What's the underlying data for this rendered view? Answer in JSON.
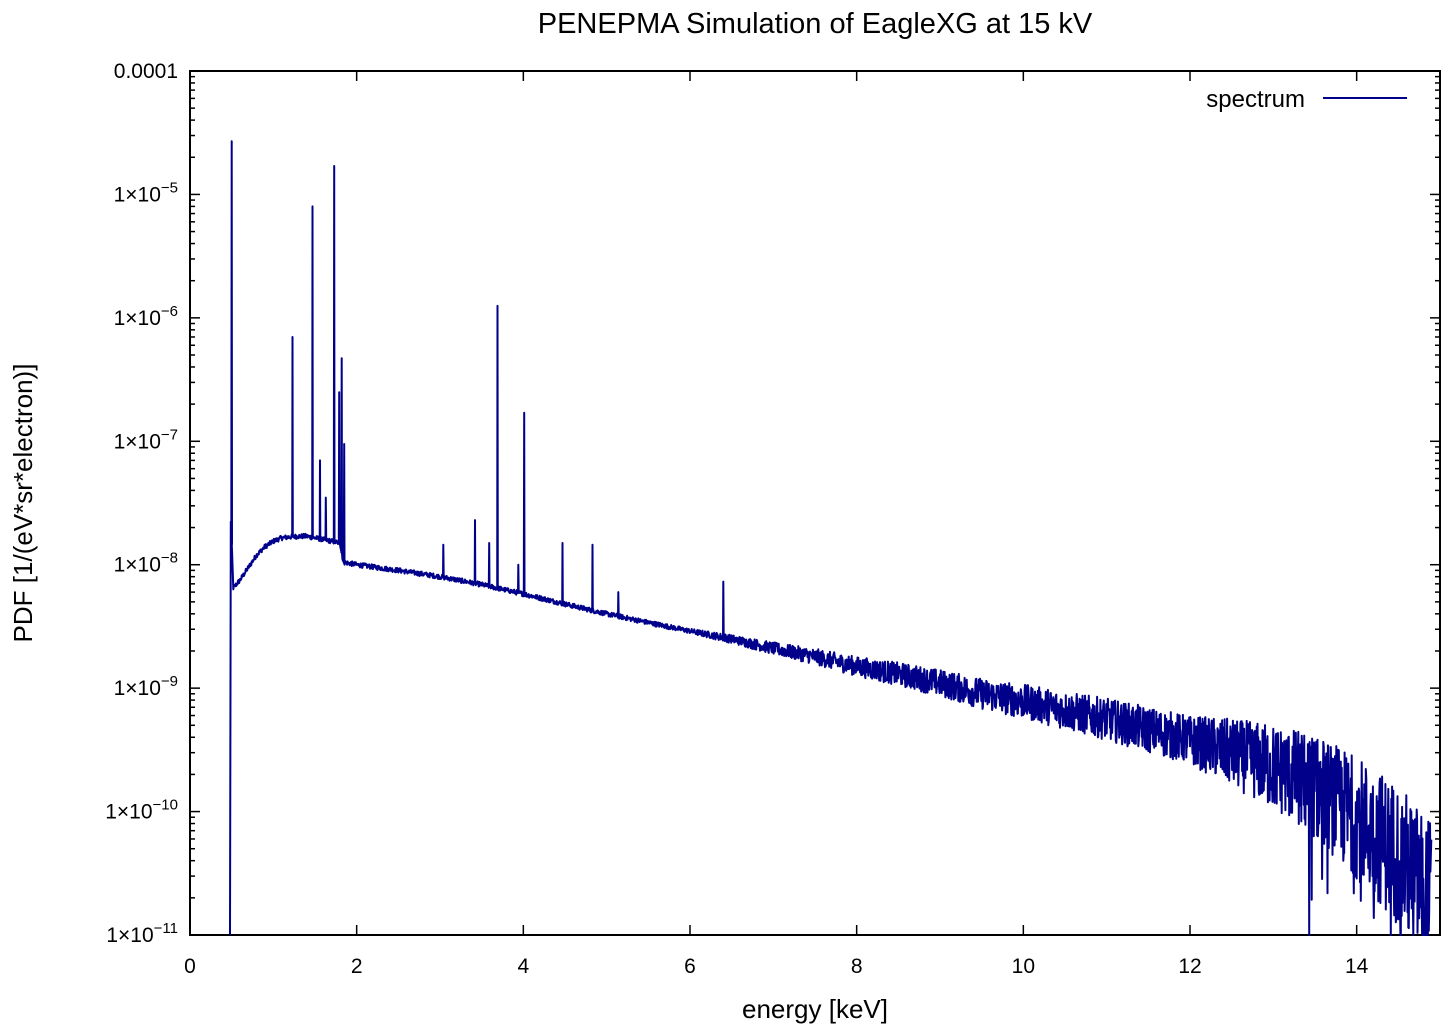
{
  "chart_data": {
    "type": "line",
    "title": "PENEPMA Simulation of EagleXG at 15 kV",
    "xlabel": "energy [keV]",
    "ylabel": "PDF [1/(eV*sr*electron)]",
    "xlim": [
      0,
      15
    ],
    "ylim": [
      1e-11,
      0.0001
    ],
    "yscale": "log",
    "grid": false,
    "legend": "top-right",
    "x_ticks": [
      {
        "value": 0,
        "label": "0"
      },
      {
        "value": 2,
        "label": "2"
      },
      {
        "value": 4,
        "label": "4"
      },
      {
        "value": 6,
        "label": "6"
      },
      {
        "value": 8,
        "label": "8"
      },
      {
        "value": 10,
        "label": "10"
      },
      {
        "value": 12,
        "label": "12"
      },
      {
        "value": 14,
        "label": "14"
      }
    ],
    "y_ticks": [
      {
        "value": 0.0001,
        "label": "0.0001",
        "mant": "",
        "exp": ""
      },
      {
        "value": 1e-05,
        "label": "",
        "mant": "1×10",
        "exp": "−5"
      },
      {
        "value": 1e-06,
        "label": "",
        "mant": "1×10",
        "exp": "−6"
      },
      {
        "value": 1e-07,
        "label": "",
        "mant": "1×10",
        "exp": "−7"
      },
      {
        "value": 1e-08,
        "label": "",
        "mant": "1×10",
        "exp": "−8"
      },
      {
        "value": 1e-09,
        "label": "",
        "mant": "1×10",
        "exp": "−9"
      },
      {
        "value": 1e-10,
        "label": "",
        "mant": "1×10",
        "exp": "−10"
      },
      {
        "value": 1e-11,
        "label": "",
        "mant": "1×10",
        "exp": "−11"
      }
    ],
    "series": [
      {
        "name": "spectrum",
        "color": "#00008b",
        "continuum": [
          [
            0.48,
            1e-11
          ],
          [
            0.49,
            2.2e-08
          ],
          [
            0.52,
            6.5e-09
          ],
          [
            0.6,
            7.5e-09
          ],
          [
            0.7,
            9.5e-09
          ],
          [
            0.8,
            1.2e-08
          ],
          [
            0.9,
            1.4e-08
          ],
          [
            1.0,
            1.55e-08
          ],
          [
            1.1,
            1.65e-08
          ],
          [
            1.2,
            1.68e-08
          ],
          [
            1.3,
            1.7e-08
          ],
          [
            1.4,
            1.7e-08
          ],
          [
            1.5,
            1.65e-08
          ],
          [
            1.6,
            1.6e-08
          ],
          [
            1.7,
            1.55e-08
          ],
          [
            1.8,
            1.5e-08
          ],
          [
            1.84,
            1.05e-08
          ],
          [
            2.0,
            1e-08
          ],
          [
            2.5,
            9e-09
          ],
          [
            3.0,
            8e-09
          ],
          [
            3.5,
            6.9e-09
          ],
          [
            4.0,
            5.8e-09
          ],
          [
            4.5,
            4.8e-09
          ],
          [
            5.0,
            4e-09
          ],
          [
            5.5,
            3.4e-09
          ],
          [
            6.0,
            2.9e-09
          ],
          [
            6.5,
            2.5e-09
          ],
          [
            7.0,
            2.1e-09
          ],
          [
            7.5,
            1.8e-09
          ],
          [
            8.0,
            1.5e-09
          ],
          [
            8.5,
            1.3e-09
          ],
          [
            9.0,
            1.1e-09
          ],
          [
            9.5,
            9e-10
          ],
          [
            10.0,
            7.8e-10
          ],
          [
            10.5,
            6.6e-10
          ],
          [
            11.0,
            5.6e-10
          ],
          [
            11.5,
            4.6e-10
          ],
          [
            12.0,
            3.8e-10
          ],
          [
            12.5,
            3e-10
          ],
          [
            13.0,
            2.3e-10
          ],
          [
            13.5,
            1.6e-10
          ],
          [
            14.0,
            9e-11
          ],
          [
            14.5,
            4.5e-11
          ],
          [
            14.9,
            2e-11
          ]
        ],
        "peaks": [
          {
            "x": 0.5,
            "y": 2.7e-05
          },
          {
            "x": 1.23,
            "y": 7e-07
          },
          {
            "x": 1.47,
            "y": 8e-06
          },
          {
            "x": 1.56,
            "y": 7e-08
          },
          {
            "x": 1.63,
            "y": 3.5e-08
          },
          {
            "x": 1.73,
            "y": 1.7e-05
          },
          {
            "x": 1.79,
            "y": 2.5e-07
          },
          {
            "x": 1.82,
            "y": 4.7e-07
          },
          {
            "x": 1.85,
            "y": 9.5e-08
          },
          {
            "x": 3.04,
            "y": 1.45e-08
          },
          {
            "x": 3.42,
            "y": 2.3e-08
          },
          {
            "x": 3.59,
            "y": 1.5e-08
          },
          {
            "x": 3.69,
            "y": 1.25e-06
          },
          {
            "x": 3.94,
            "y": 1e-08
          },
          {
            "x": 4.01,
            "y": 1.7e-07
          },
          {
            "x": 4.47,
            "y": 1.5e-08
          },
          {
            "x": 4.83,
            "y": 1.45e-08
          },
          {
            "x": 5.14,
            "y": 6e-09
          },
          {
            "x": 6.4,
            "y": 7.3e-09
          }
        ]
      }
    ]
  }
}
